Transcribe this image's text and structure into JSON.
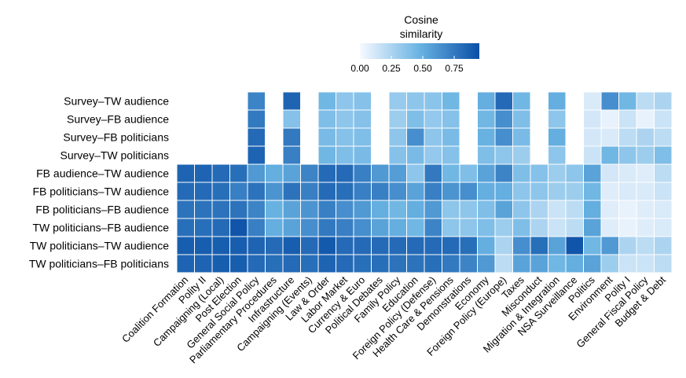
{
  "chart_data": {
    "type": "heatmap",
    "title": "",
    "xlabel": "",
    "ylabel": "",
    "legend": {
      "title_lines": [
        "Cosine",
        "similarity"
      ],
      "ticks": [
        "0.00",
        "0.25",
        "0.50",
        "0.75"
      ],
      "tick_values": [
        0.0,
        0.25,
        0.5,
        0.75
      ],
      "range": [
        0.0,
        0.95
      ],
      "position": "top-center"
    },
    "color_scale": {
      "low": "#f7f9ff",
      "mid": "#69b3e3",
      "high": "#0a4fa6"
    },
    "rows": [
      "Survey–TW audience",
      "Survey–FB audience",
      "Survey–FB politicians",
      "Survey–TW politicians",
      "FB audience–TW audience",
      "FB politicians–TW audience",
      "FB politicians–FB audience",
      "TW politicians–FB audience",
      "TW politicians–TW audience",
      "TW politicians–FB politicians"
    ],
    "columns": [
      "Coalition Formation",
      "Polity II",
      "Campaigning (Local)",
      "Post Election",
      "General Social Policy",
      "Parliamentary Procedures",
      "Infrastructure",
      "Campaigning (Events)",
      "Law & Order",
      "Labor Market",
      "Currency & Euro",
      "Political Debates",
      "Family Policy",
      "Education",
      "Foreign Policy (Defense)",
      "Health Care & Pensions",
      "Demonstrations",
      "Economy",
      "Foreign Policy (Europe)",
      "Taxes",
      "Misconduct",
      "Migration & Integration",
      "NSA Surveillance",
      "Politics",
      "Environment",
      "Polity I",
      "General Fiscal Policy",
      "Budget & Debt"
    ],
    "values": [
      [
        null,
        null,
        null,
        null,
        0.7,
        null,
        0.85,
        null,
        0.45,
        0.35,
        0.38,
        null,
        0.32,
        0.35,
        0.36,
        0.45,
        null,
        0.5,
        0.82,
        0.45,
        null,
        0.5,
        null,
        0.1,
        0.65,
        0.45,
        0.2,
        0.25
      ],
      [
        null,
        null,
        null,
        null,
        0.75,
        null,
        0.38,
        null,
        0.4,
        0.35,
        0.38,
        null,
        0.3,
        0.4,
        0.33,
        0.38,
        null,
        0.45,
        0.65,
        0.4,
        null,
        0.35,
        null,
        0.12,
        0.05,
        0.15,
        0.05,
        0.15
      ],
      [
        null,
        null,
        null,
        null,
        0.82,
        null,
        0.75,
        null,
        0.42,
        0.38,
        0.4,
        null,
        0.35,
        0.65,
        0.35,
        0.42,
        null,
        0.48,
        0.65,
        0.42,
        null,
        0.5,
        null,
        0.12,
        0.1,
        0.2,
        0.25,
        0.2
      ],
      [
        null,
        null,
        null,
        null,
        0.85,
        null,
        0.72,
        null,
        0.45,
        0.4,
        0.42,
        null,
        0.38,
        0.42,
        0.33,
        0.38,
        null,
        0.4,
        0.35,
        0.3,
        null,
        0.35,
        null,
        0.15,
        0.45,
        0.35,
        0.3,
        0.4
      ],
      [
        0.85,
        0.85,
        0.82,
        0.8,
        0.6,
        0.5,
        0.55,
        0.7,
        0.82,
        0.82,
        0.72,
        0.6,
        0.58,
        0.35,
        0.75,
        0.45,
        0.4,
        0.55,
        0.7,
        0.4,
        0.38,
        0.3,
        0.35,
        0.55,
        0.12,
        0.1,
        0.08,
        0.2
      ],
      [
        0.82,
        0.82,
        0.8,
        0.72,
        0.78,
        0.62,
        0.78,
        0.72,
        0.82,
        0.8,
        0.72,
        0.72,
        0.65,
        0.55,
        0.72,
        0.62,
        0.65,
        0.5,
        0.5,
        0.35,
        0.35,
        0.3,
        0.3,
        0.45,
        0.08,
        0.1,
        0.1,
        0.15
      ],
      [
        0.78,
        0.78,
        0.78,
        0.78,
        0.7,
        0.48,
        0.55,
        0.62,
        0.72,
        0.65,
        0.6,
        0.5,
        0.45,
        0.5,
        0.6,
        0.35,
        0.35,
        0.4,
        0.55,
        0.35,
        0.25,
        0.15,
        0.2,
        0.5,
        0.08,
        0.05,
        0.08,
        0.1
      ],
      [
        0.8,
        0.8,
        0.82,
        0.92,
        0.72,
        0.5,
        0.55,
        0.65,
        0.75,
        0.72,
        0.65,
        0.55,
        0.5,
        0.45,
        0.7,
        0.35,
        0.35,
        0.4,
        0.3,
        0.4,
        0.25,
        0.15,
        0.2,
        0.55,
        0.08,
        0.05,
        0.08,
        0.1
      ],
      [
        0.88,
        0.88,
        0.88,
        0.88,
        0.85,
        0.82,
        0.88,
        0.82,
        0.9,
        0.82,
        0.82,
        0.82,
        0.82,
        0.82,
        0.82,
        0.82,
        0.8,
        0.5,
        0.25,
        0.65,
        0.8,
        0.55,
        0.92,
        0.45,
        0.6,
        0.25,
        0.2,
        0.25
      ],
      [
        0.85,
        0.85,
        0.88,
        0.88,
        0.82,
        0.8,
        0.82,
        0.8,
        0.85,
        0.82,
        0.8,
        0.8,
        0.78,
        0.78,
        0.8,
        0.75,
        0.7,
        0.6,
        0.2,
        0.55,
        0.55,
        0.45,
        0.5,
        0.55,
        0.3,
        0.15,
        0.15,
        0.2
      ]
    ]
  }
}
